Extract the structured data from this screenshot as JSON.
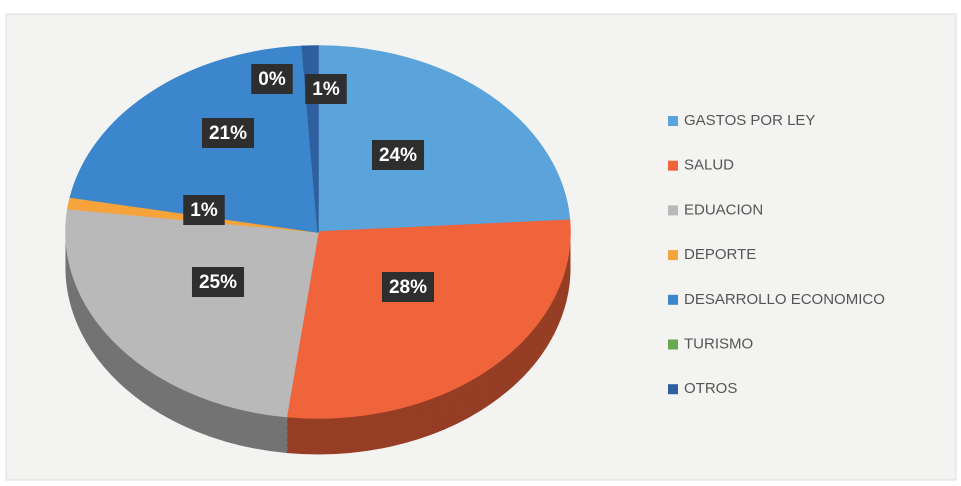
{
  "chart_data": {
    "type": "pie",
    "categories": [
      "GASTOS POR LEY",
      "SALUD",
      "EDUACION",
      "DEPORTE",
      "DESARROLLO ECONOMICO",
      "TURISMO",
      "OTROS"
    ],
    "values": [
      24,
      28,
      25,
      1,
      21,
      0,
      1
    ],
    "value_labels": [
      "24%",
      "28%",
      "25%",
      "1%",
      "21%",
      "0%",
      "1%"
    ],
    "colors": [
      "#5ba3db",
      "#f0643c",
      "#b9b9b9",
      "#f5a33a",
      "#3b86cc",
      "#6aa84f",
      "#2f5fa0"
    ],
    "legend": "right"
  }
}
